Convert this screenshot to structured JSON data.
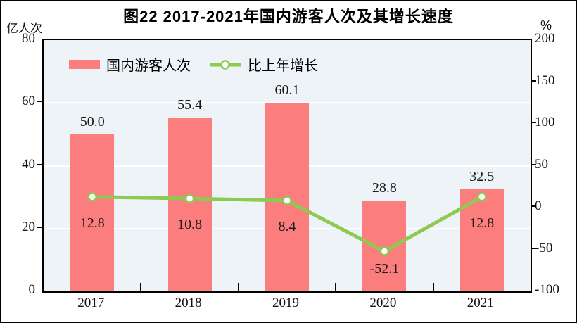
{
  "chart_data": {
    "type": "bar",
    "combo": "bar+line dual axis",
    "title": "图22  2017-2021年国内游客人次及其增长速度",
    "categories": [
      "2017",
      "2018",
      "2019",
      "2020",
      "2021"
    ],
    "series": [
      {
        "name": "国内游客人次",
        "type": "bar",
        "axis": "left",
        "color": "#fb7d7d",
        "values": [
          50.0,
          55.4,
          60.1,
          28.8,
          32.5
        ],
        "labels": [
          "50.0",
          "55.4",
          "60.1",
          "28.8",
          "32.5"
        ]
      },
      {
        "name": "比上年增长",
        "type": "line",
        "axis": "right",
        "color": "#8ec951",
        "marker": "open-circle",
        "marker_fill": "#ffffff",
        "values": [
          12.8,
          10.8,
          8.4,
          -52.1,
          12.8
        ],
        "labels": [
          "12.8",
          "10.8",
          "8.4",
          "-52.1",
          "12.8"
        ]
      }
    ],
    "left_axis": {
      "label": "亿人次",
      "min": 0,
      "max": 80,
      "ticks": [
        80,
        60,
        40,
        20,
        0
      ]
    },
    "right_axis": {
      "label": "%",
      "min": -100,
      "max": 200,
      "ticks": [
        200,
        150,
        100,
        50,
        0,
        -50,
        -100
      ]
    },
    "grid": true,
    "gridline_values_left": [
      60,
      40,
      20
    ],
    "plot_background": "#edf3f7",
    "gridline_color": "#ffffff",
    "legend_position": "top-left-inside"
  }
}
